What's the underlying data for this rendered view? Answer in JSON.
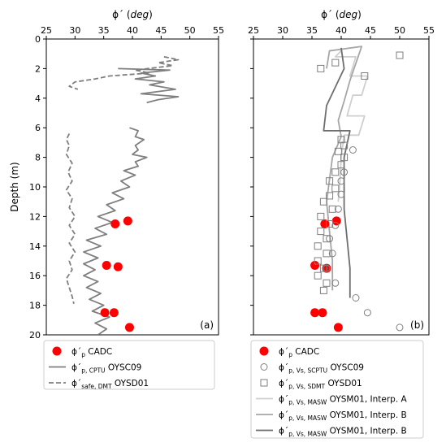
{
  "chart_data": [
    {
      "type": "line",
      "panel_label": "(a)",
      "xlabel": "ϕ´ (deg)",
      "ylabel": "Depth (m)",
      "xlim": [
        25,
        55
      ],
      "ylim": [
        20,
        0
      ],
      "x_ticks": [
        "25",
        "30",
        "35",
        "40",
        "45",
        "50",
        "55"
      ],
      "y_ticks": [
        "0",
        "2",
        "4",
        "6",
        "8",
        "10",
        "12",
        "14",
        "16",
        "18",
        "20"
      ],
      "x_axis_position": "top",
      "grid": false,
      "legend_position": "below",
      "series": [
        {
          "name": "ϕ´p CADC",
          "legend": {
            "main": "ϕ´",
            "sub": "p",
            "suffix": " CADC"
          },
          "marker": "filled-circle",
          "color": "#ff0000",
          "points": [
            [
              39.2,
              12.3
            ],
            [
              37.0,
              12.5
            ],
            [
              35.5,
              15.3
            ],
            [
              37.5,
              15.4
            ],
            [
              35.2,
              18.5
            ],
            [
              36.8,
              18.5
            ],
            [
              39.5,
              19.5
            ]
          ]
        },
        {
          "name": "ϕ´p, CPTU OYSC09",
          "legend": {
            "main": "ϕ´",
            "sub": "p, CPTU",
            "suffix": " OYSC09"
          },
          "line_style": "solid",
          "color": "#7f7f7f",
          "segments": [
            [
              [
                37.5,
                2.0
              ],
              [
                46.5,
                2.1
              ],
              [
                41.5,
                2.3
              ],
              [
                44.0,
                2.5
              ],
              [
                40.5,
                2.7
              ],
              [
                45.5,
                2.9
              ],
              [
                43.0,
                3.1
              ],
              [
                47.5,
                3.4
              ],
              [
                41.5,
                3.7
              ],
              [
                48.0,
                3.9
              ],
              [
                44.5,
                4.1
              ],
              [
                42.5,
                4.3
              ]
            ],
            [
              [
                39.5,
                6.0
              ],
              [
                41.0,
                6.2
              ],
              [
                40.5,
                6.6
              ],
              [
                42.0,
                6.8
              ],
              [
                40.5,
                7.2
              ],
              [
                41.0,
                7.5
              ],
              [
                40.0,
                7.8
              ],
              [
                42.5,
                8.0
              ],
              [
                40.5,
                8.3
              ],
              [
                41.0,
                8.6
              ],
              [
                38.5,
                8.9
              ],
              [
                40.5,
                9.2
              ],
              [
                38.0,
                9.6
              ],
              [
                39.5,
                10.0
              ],
              [
                36.5,
                10.4
              ],
              [
                38.5,
                10.8
              ],
              [
                35.5,
                11.2
              ],
              [
                37.0,
                11.6
              ],
              [
                34.0,
                12.0
              ],
              [
                36.5,
                12.4
              ],
              [
                33.5,
                12.8
              ],
              [
                35.5,
                13.2
              ],
              [
                32.0,
                13.6
              ],
              [
                34.5,
                14.0
              ],
              [
                31.5,
                14.4
              ],
              [
                34.0,
                14.8
              ],
              [
                31.5,
                15.2
              ],
              [
                33.5,
                15.6
              ],
              [
                31.5,
                16.0
              ],
              [
                34.0,
                16.4
              ],
              [
                32.0,
                16.8
              ],
              [
                34.5,
                17.2
              ],
              [
                32.5,
                17.6
              ],
              [
                35.0,
                18.0
              ],
              [
                33.0,
                18.4
              ],
              [
                36.0,
                18.8
              ],
              [
                33.5,
                19.2
              ],
              [
                35.5,
                19.6
              ],
              [
                34.0,
                20.0
              ]
            ]
          ]
        },
        {
          "name": "ϕ´safe, DMT OYSD01",
          "legend": {
            "main": "ϕ´",
            "sub": "safe, DMT",
            "suffix": " OYSD01"
          },
          "line_style": "dashed",
          "color": "#7f7f7f",
          "segments": [
            [
              [
                45.5,
                1.2
              ],
              [
                48.0,
                1.4
              ],
              [
                44.5,
                1.6
              ],
              [
                47.0,
                1.8
              ],
              [
                40.5,
                2.1
              ],
              [
                43.0,
                2.3
              ],
              [
                36.0,
                2.5
              ],
              [
                33.5,
                2.7
              ],
              [
                30.0,
                2.9
              ],
              [
                29.0,
                3.2
              ],
              [
                30.5,
                3.4
              ]
            ],
            [
              [
                29.0,
                6.4
              ],
              [
                28.5,
                6.8
              ],
              [
                29.0,
                7.2
              ],
              [
                28.5,
                7.8
              ],
              [
                29.5,
                8.4
              ],
              [
                28.8,
                9.0
              ],
              [
                29.5,
                9.6
              ],
              [
                28.5,
                10.2
              ],
              [
                29.5,
                10.8
              ],
              [
                29.0,
                11.4
              ],
              [
                30.0,
                12.0
              ],
              [
                29.0,
                12.6
              ],
              [
                30.0,
                13.2
              ],
              [
                29.0,
                13.8
              ],
              [
                30.0,
                14.4
              ],
              [
                29.0,
                15.0
              ],
              [
                29.5,
                15.6
              ],
              [
                28.5,
                16.2
              ],
              [
                29.0,
                16.8
              ],
              [
                29.5,
                17.4
              ],
              [
                29.8,
                17.9
              ]
            ]
          ]
        }
      ]
    },
    {
      "type": "line",
      "panel_label": "(b)",
      "xlabel": "ϕ´ (deg)",
      "xlim": [
        25,
        55
      ],
      "ylim": [
        20,
        0
      ],
      "x_ticks": [
        "25",
        "30",
        "35",
        "40",
        "45",
        "50",
        "55"
      ],
      "x_axis_position": "top",
      "grid": false,
      "legend_position": "below",
      "series": [
        {
          "name": "ϕ´p CADC",
          "legend": {
            "main": "ϕ´",
            "sub": "p",
            "suffix": " CADC"
          },
          "marker": "filled-circle",
          "color": "#ff0000",
          "points": [
            [
              39.2,
              12.3
            ],
            [
              37.2,
              12.5
            ],
            [
              35.5,
              15.3
            ],
            [
              37.5,
              15.5
            ],
            [
              35.5,
              18.5
            ],
            [
              36.8,
              18.5
            ],
            [
              39.5,
              19.5
            ]
          ]
        },
        {
          "name": "ϕ´p, Vs, SCPTU OYSC09",
          "legend": {
            "main": "ϕ´",
            "sub": "p, Vs, SCPTU",
            "suffix": " OYSC09"
          },
          "marker": "open-circle",
          "color": "#7f7f7f",
          "points": [
            [
              42.0,
              7.5
            ],
            [
              40.5,
              9.0
            ],
            [
              40.0,
              9.6
            ],
            [
              40.0,
              10.5
            ],
            [
              39.5,
              11.5
            ],
            [
              39.0,
              12.6
            ],
            [
              38.0,
              13.5
            ],
            [
              38.5,
              14.5
            ],
            [
              37.5,
              15.5
            ],
            [
              39.0,
              16.5
            ],
            [
              42.5,
              17.5
            ],
            [
              44.5,
              18.5
            ],
            [
              50.0,
              19.5
            ]
          ]
        },
        {
          "name": "ϕ´p, Vs, SDMT OYSD01",
          "legend": {
            "main": "ϕ´",
            "sub": "p, Vs, SDMT",
            "suffix": " OYSD01"
          },
          "marker": "open-square",
          "color": "#7f7f7f",
          "points": [
            [
              50.0,
              1.1
            ],
            [
              39.0,
              1.6
            ],
            [
              36.5,
              2.0
            ],
            [
              44.0,
              2.5
            ],
            [
              40.0,
              6.8
            ],
            [
              40.5,
              7.2
            ],
            [
              39.5,
              7.6
            ],
            [
              40.5,
              8.0
            ],
            [
              40.0,
              8.5
            ],
            [
              39.0,
              9.0
            ],
            [
              38.0,
              9.6
            ],
            [
              39.0,
              10.1
            ],
            [
              38.0,
              10.6
            ],
            [
              37.0,
              11.0
            ],
            [
              38.5,
              11.5
            ],
            [
              36.5,
              12.0
            ],
            [
              38.0,
              12.5
            ],
            [
              36.5,
              13.0
            ],
            [
              37.5,
              13.5
            ],
            [
              36.0,
              14.0
            ],
            [
              37.5,
              14.5
            ],
            [
              36.0,
              15.0
            ],
            [
              37.0,
              15.5
            ],
            [
              36.0,
              16.0
            ],
            [
              37.5,
              16.5
            ],
            [
              37.0,
              17.0
            ]
          ]
        },
        {
          "name": "ϕ´p, Vs, MASW OYSM01, Interp. A",
          "legend": {
            "main": "ϕ´",
            "sub": "p, Vs, MASW",
            "suffix": " OYSM01, Interp. A"
          },
          "line_style": "solid",
          "color": "#cfcfcf",
          "segments": [
            [
              [
                40.0,
                0.8
              ],
              [
                39.0,
                1.2
              ],
              [
                42.5,
                1.2
              ],
              [
                41.5,
                2.5
              ],
              [
                44.5,
                2.5
              ],
              [
                43.5,
                3.8
              ],
              [
                42.0,
                3.8
              ],
              [
                41.0,
                5.2
              ],
              [
                44.0,
                5.2
              ],
              [
                43.0,
                6.5
              ],
              [
                40.5,
                6.5
              ],
              [
                40.0,
                8.0
              ],
              [
                39.8,
                9.5
              ],
              [
                39.5,
                11.0
              ]
            ]
          ]
        },
        {
          "name": "ϕ´p, Vs, MASW OYSM01, Interp. B (1)",
          "legend": {
            "main": "ϕ´",
            "sub": "p, Vs, MASW",
            "suffix": " OYSM01, Interp. B"
          },
          "line_style": "solid",
          "color": "#a6a6a6",
          "segments": [
            [
              [
                37.5,
                2.0
              ],
              [
                38.0,
                0.8
              ],
              [
                43.5,
                0.5
              ],
              [
                41.5,
                2.8
              ],
              [
                40.5,
                4.2
              ],
              [
                39.5,
                5.5
              ],
              [
                40.0,
                6.6
              ],
              [
                38.5,
                8.0
              ],
              [
                38.0,
                9.5
              ],
              [
                37.5,
                11.0
              ],
              [
                38.0,
                13.0
              ],
              [
                38.5,
                15.0
              ],
              [
                38.5,
                17.0
              ]
            ]
          ]
        },
        {
          "name": "ϕ´p, Vs, MASW OYSM01, Interp. B (2)",
          "legend": {
            "main": "ϕ´",
            "sub": "p, Vs, MASW",
            "suffix": " OYSM01, Interp. B"
          },
          "line_style": "solid",
          "color": "#6e6e6e",
          "segments": [
            [
              [
                40.0,
                0.6
              ],
              [
                40.5,
                2.0
              ],
              [
                37.5,
                4.5
              ],
              [
                37.0,
                6.2
              ],
              [
                41.5,
                6.2
              ],
              [
                40.5,
                8.0
              ],
              [
                40.5,
                9.5
              ],
              [
                40.5,
                11.5
              ],
              [
                41.0,
                13.5
              ],
              [
                41.5,
                15.5
              ],
              [
                41.5,
                17.5
              ]
            ]
          ]
        }
      ]
    }
  ]
}
